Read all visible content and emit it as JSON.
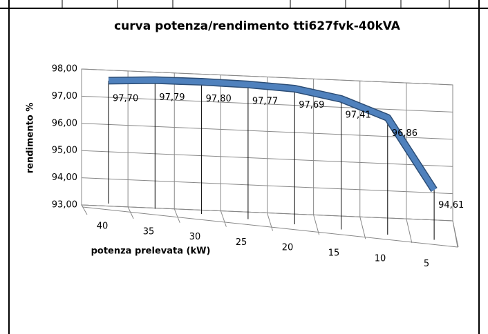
{
  "chart_data": {
    "type": "line3d",
    "title": "curva potenza/rendimento tti627fvk-40kVA",
    "x_label": "potenza prelevata (kW)",
    "y_label": "rendimento %",
    "categories": [
      "40",
      "35",
      "30",
      "25",
      "20",
      "15",
      "10",
      "5"
    ],
    "series": [
      {
        "name": "rendimento",
        "color": "#4f81bd",
        "values": [
          97.7,
          97.79,
          97.8,
          97.77,
          97.69,
          97.41,
          96.86,
          94.61
        ],
        "value_labels": [
          "97,70",
          "97,79",
          "97,80",
          "97,77",
          "97,69",
          "97,41",
          "96,86",
          "94,61"
        ]
      }
    ],
    "ylim": [
      93,
      98
    ],
    "yticks": [
      {
        "value": 93,
        "label": "93,00"
      },
      {
        "value": 94,
        "label": "94,00"
      },
      {
        "value": 95,
        "label": "95,00"
      },
      {
        "value": 96,
        "label": "96,00"
      },
      {
        "value": 97,
        "label": "97,00"
      },
      {
        "value": 98,
        "label": "98,00"
      }
    ],
    "grid": true
  }
}
